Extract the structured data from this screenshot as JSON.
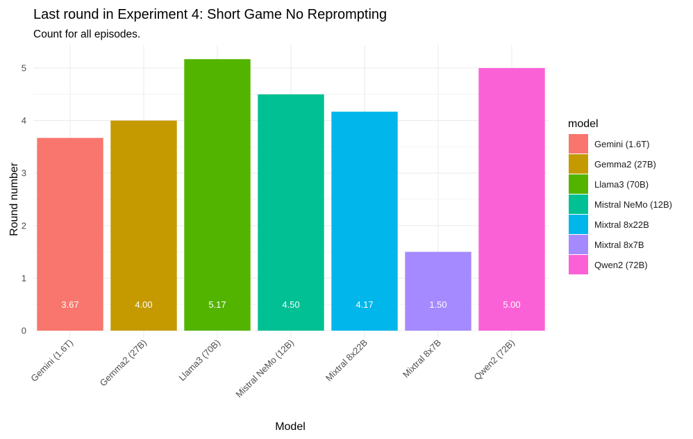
{
  "chart_data": {
    "type": "bar",
    "title": "Last round in Experiment 4: Short Game No Reprompting",
    "subtitle": "Count for all episodes.",
    "xlabel": "Model",
    "ylabel": "Round number",
    "categories": [
      "Gemini (1.6T)",
      "Gemma2 (27B)",
      "Llama3 (70B)",
      "Mistral NeMo (12B)",
      "Mixtral 8x22B",
      "Mixtral 8x7B",
      "Qwen2 (72B)"
    ],
    "values": [
      3.67,
      4.0,
      5.17,
      4.5,
      4.17,
      1.5,
      5.0
    ],
    "value_labels": [
      "3.67",
      "4.00",
      "5.17",
      "4.50",
      "4.17",
      "1.50",
      "5.00"
    ],
    "colors": [
      "#F8766D",
      "#C49A00",
      "#53B400",
      "#00C094",
      "#00B6EB",
      "#A58AFF",
      "#FB61D7"
    ],
    "y_ticks": [
      0,
      1,
      2,
      3,
      4,
      5
    ],
    "ylim": [
      0,
      5.4
    ],
    "grid": true,
    "legend": {
      "title": "model",
      "position": "right",
      "entries": [
        "Gemini (1.6T)",
        "Gemma2 (27B)",
        "Llama3 (70B)",
        "Mistral NeMo (12B)",
        "Mixtral 8x22B",
        "Mixtral 8x7B",
        "Qwen2 (72B)"
      ]
    }
  }
}
